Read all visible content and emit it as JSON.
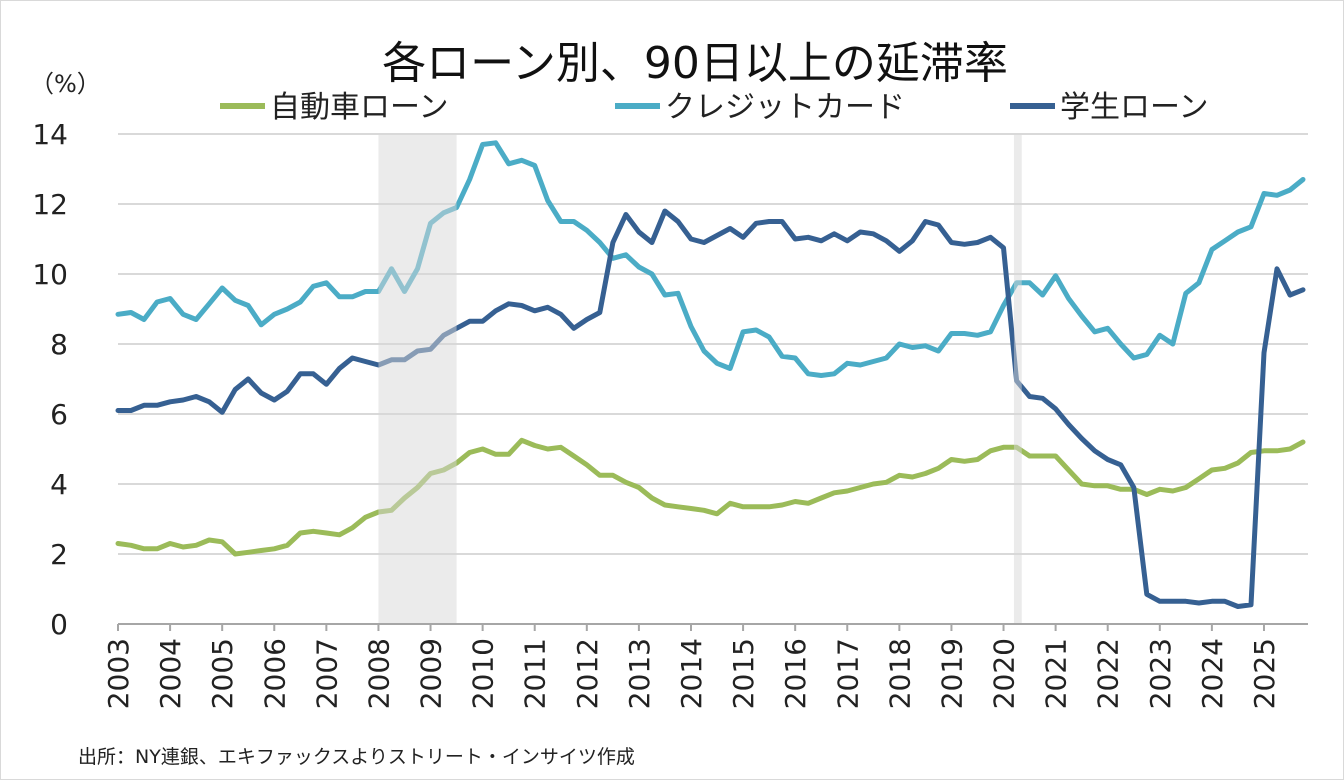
{
  "chart_data": {
    "type": "line",
    "title": "各ローン別、90日以上の延滞率",
    "ylabel": "（%）",
    "source": "出所：NY連銀、エキファックスよりストリート・インサイツ作成",
    "ylim": [
      0,
      14
    ],
    "yticks": [
      0,
      2,
      4,
      6,
      8,
      10,
      12,
      14
    ],
    "xlim": [
      2003,
      2025.75
    ],
    "xticks": [
      "2003",
      "2004",
      "2005",
      "2006",
      "2007",
      "2008",
      "2009",
      "2010",
      "2011",
      "2012",
      "2013",
      "2014",
      "2015",
      "2016",
      "2017",
      "2018",
      "2019",
      "2020",
      "2021",
      "2022",
      "2023",
      "2024",
      "2025"
    ],
    "frequency": "quarterly, 2003Q1–2025Q4",
    "grid": "horizontal",
    "legend_position": "top",
    "shaded_periods": [
      [
        2008.0,
        2009.5
      ],
      [
        2020.2,
        2020.35
      ]
    ],
    "series": [
      {
        "name": "自動車ローン",
        "color": "#9BBB59",
        "values": [
          2.3,
          2.25,
          2.15,
          2.15,
          2.3,
          2.2,
          2.25,
          2.4,
          2.35,
          2.0,
          2.05,
          2.1,
          2.15,
          2.25,
          2.6,
          2.65,
          2.6,
          2.55,
          2.75,
          3.05,
          3.2,
          3.25,
          3.6,
          3.9,
          4.3,
          4.4,
          4.6,
          4.9,
          5.0,
          4.85,
          4.85,
          5.25,
          5.1,
          5.0,
          5.05,
          4.8,
          4.55,
          4.25,
          4.25,
          4.05,
          3.9,
          3.6,
          3.4,
          3.35,
          3.3,
          3.25,
          3.15,
          3.45,
          3.35,
          3.35,
          3.35,
          3.4,
          3.5,
          3.45,
          3.6,
          3.75,
          3.8,
          3.9,
          4.0,
          4.05,
          4.25,
          4.2,
          4.3,
          4.45,
          4.7,
          4.65,
          4.7,
          4.95,
          5.05,
          5.05,
          4.8,
          4.8,
          4.8,
          4.4,
          4.0,
          3.95,
          3.95,
          3.85,
          3.85,
          3.7,
          3.85,
          3.8,
          3.9,
          4.15,
          4.4,
          4.45,
          4.6,
          4.9,
          4.95,
          4.95,
          5.0,
          5.2
        ]
      },
      {
        "name": "クレジットカード",
        "color": "#4BACC6",
        "values": [
          8.85,
          8.9,
          8.7,
          9.2,
          9.3,
          8.85,
          8.7,
          9.15,
          9.6,
          9.25,
          9.1,
          8.55,
          8.85,
          9.0,
          9.2,
          9.65,
          9.75,
          9.35,
          9.35,
          9.5,
          9.5,
          10.15,
          9.5,
          10.15,
          11.45,
          11.75,
          11.9,
          12.7,
          13.7,
          13.75,
          13.15,
          13.25,
          13.1,
          12.1,
          11.5,
          11.5,
          11.25,
          10.9,
          10.45,
          10.55,
          10.2,
          10.0,
          9.4,
          9.45,
          8.5,
          7.8,
          7.45,
          7.3,
          8.35,
          8.4,
          8.2,
          7.65,
          7.6,
          7.15,
          7.1,
          7.15,
          7.45,
          7.4,
          7.5,
          7.6,
          8.0,
          7.9,
          7.95,
          7.8,
          8.3,
          8.3,
          8.25,
          8.35,
          9.1,
          9.75,
          9.75,
          9.4,
          9.95,
          9.3,
          8.8,
          8.35,
          8.45,
          8.0,
          7.6,
          7.7,
          8.25,
          8.0,
          9.45,
          9.75,
          10.7,
          10.95,
          11.2,
          11.35,
          12.3,
          12.25,
          12.4,
          12.7
        ]
      },
      {
        "name": "学生ローン",
        "color": "#366092",
        "values": [
          6.1,
          6.1,
          6.25,
          6.25,
          6.35,
          6.4,
          6.5,
          6.35,
          6.05,
          6.7,
          7.0,
          6.6,
          6.4,
          6.65,
          7.15,
          7.15,
          6.85,
          7.3,
          7.6,
          7.5,
          7.4,
          7.55,
          7.55,
          7.8,
          7.85,
          8.25,
          8.45,
          8.65,
          8.65,
          8.95,
          9.15,
          9.1,
          8.95,
          9.05,
          8.85,
          8.45,
          8.7,
          8.9,
          10.9,
          11.7,
          11.2,
          10.9,
          11.8,
          11.5,
          11.0,
          10.9,
          11.1,
          11.3,
          11.05,
          11.45,
          11.5,
          11.5,
          11.0,
          11.05,
          10.95,
          11.15,
          10.95,
          11.2,
          11.15,
          10.95,
          10.65,
          10.95,
          11.5,
          11.4,
          10.9,
          10.85,
          10.9,
          11.05,
          10.75,
          6.95,
          6.5,
          6.45,
          6.15,
          5.7,
          5.3,
          4.95,
          4.7,
          4.55,
          3.9,
          0.85,
          0.65,
          0.65,
          0.65,
          0.6,
          0.65,
          0.65,
          0.5,
          0.55,
          7.75,
          10.15,
          9.4,
          9.55
        ]
      }
    ]
  }
}
